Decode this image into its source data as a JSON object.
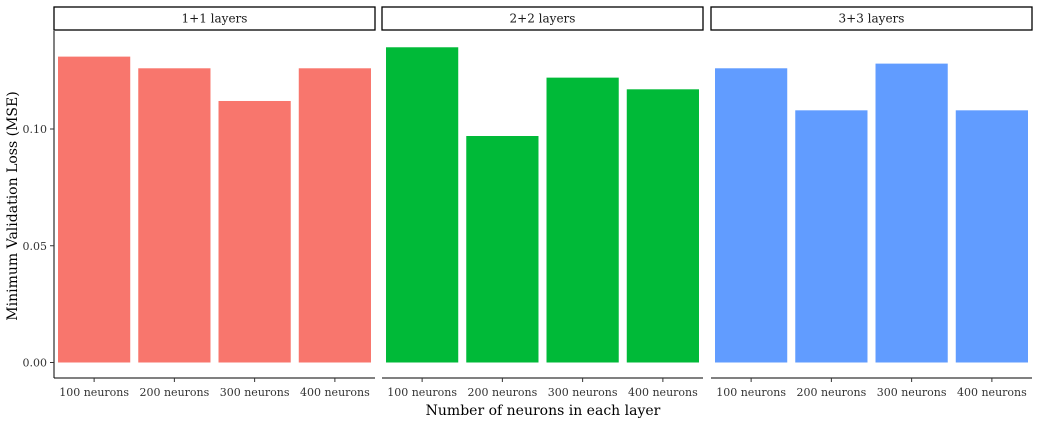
{
  "chart_data": {
    "type": "bar",
    "xlabel": "Number of neurons in each layer",
    "ylabel": "Minimum Validation Loss (MSE)",
    "ylim": [
      0,
      0.142
    ],
    "yticks": [
      "0.00",
      "0.05",
      "0.10"
    ],
    "ytick_values": [
      0,
      0.05,
      0.1
    ],
    "grid": false,
    "legend": "none",
    "categories": [
      "100 neurons",
      "200 neurons",
      "300 neurons",
      "400 neurons"
    ],
    "panels": [
      {
        "title": "1+1 layers",
        "color": "#F8766D",
        "values": [
          0.131,
          0.126,
          0.112,
          0.126
        ]
      },
      {
        "title": "2+2 layers",
        "color": "#00BA38",
        "values": [
          0.135,
          0.097,
          0.122,
          0.117
        ]
      },
      {
        "title": "3+3 layers",
        "color": "#619CFF",
        "values": [
          0.126,
          0.108,
          0.128,
          0.108
        ]
      }
    ]
  }
}
